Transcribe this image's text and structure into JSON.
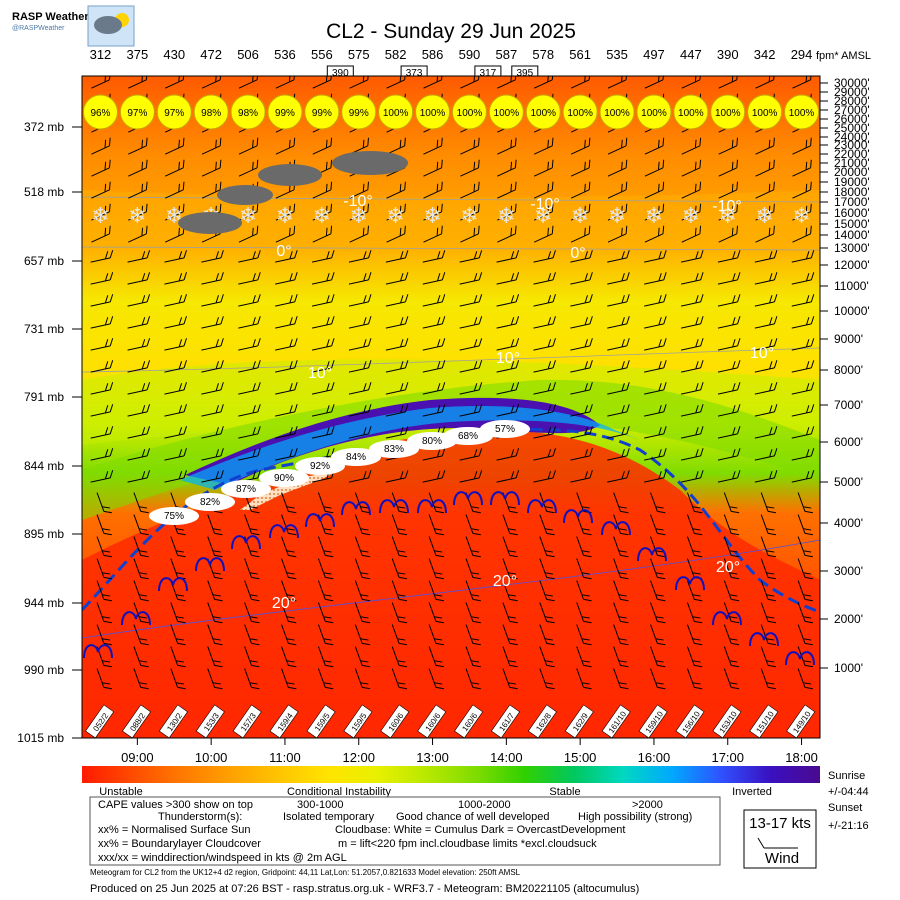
{
  "brand": {
    "name": "RASP Weather",
    "handle": "@RASPWeather"
  },
  "chart_data": {
    "type": "heatmap",
    "title": "CL2 - Sunday 29 Jun 2025",
    "top_values": [
      "312",
      "375",
      "430",
      "472",
      "506",
      "536",
      "556",
      "575",
      "582",
      "586",
      "590",
      "587",
      "578",
      "561",
      "535",
      "497",
      "447",
      "390",
      "342",
      "294"
    ],
    "top_unit": "fpm* AMSL",
    "top_boxes": [
      {
        "after": 6,
        "value": "390"
      },
      {
        "after": 8,
        "value": "373"
      },
      {
        "after": 10,
        "value": "317"
      },
      {
        "after": 11,
        "value": "395"
      }
    ],
    "pressure_labels": [
      "372 mb",
      "518 mb",
      "657 mb",
      "731 mb",
      "791 mb",
      "844 mb",
      "895 mb",
      "944 mb",
      "990 mb",
      "1015 mb"
    ],
    "altitude_labels": [
      "30000'",
      "29000'",
      "28000'",
      "27000'",
      "26000'",
      "25000'",
      "24000'",
      "23000'",
      "22000'",
      "21000'",
      "20000'",
      "19000'",
      "18000'",
      "17000'",
      "16000'",
      "15000'",
      "14000'",
      "13000'",
      "12000'",
      "11000'",
      "10000'",
      "9000'",
      "8000'",
      "7000'",
      "6000'",
      "5000'",
      "4000'",
      "3000'",
      "2000'",
      "1000'"
    ],
    "altitudes_ft": [
      30000,
      29000,
      28000,
      27000,
      26000,
      25000,
      24000,
      23000,
      22000,
      21000,
      20000,
      19000,
      18000,
      17000,
      16000,
      15000,
      14000,
      13000,
      12000,
      11000,
      10000,
      9000,
      8000,
      7000,
      6000,
      5000,
      4000,
      3000,
      2000,
      1000
    ],
    "time_labels": [
      "09:00",
      "10:00",
      "11:00",
      "12:00",
      "13:00",
      "14:00",
      "15:00",
      "16:00",
      "17:00",
      "18:00"
    ],
    "sun_values": [
      "96%",
      "97%",
      "97%",
      "98%",
      "98%",
      "99%",
      "99%",
      "99%",
      "100%",
      "100%",
      "100%",
      "100%",
      "100%",
      "100%",
      "100%",
      "100%",
      "100%",
      "100%",
      "100%",
      "100%"
    ],
    "blcloud_values": [
      "75%",
      "82%",
      "87%",
      "90%",
      "92%",
      "84%",
      "83%",
      "80%",
      "68%",
      "57%"
    ],
    "surface_wind": [
      "052/2",
      "088/2",
      "130/2",
      "153/3",
      "157/3",
      "159/4",
      "159/5",
      "159/5",
      "160/6",
      "160/6",
      "160/6",
      "161/7",
      "162/8",
      "162/9",
      "161/10",
      "159/10",
      "156/10",
      "153/10",
      "151/10",
      "149/10"
    ],
    "isotherm_labels": [
      "-10°",
      "-10°",
      "-10°",
      "0°",
      "0°",
      "10°",
      "10°",
      "10°",
      "20°",
      "20°",
      "20°"
    ],
    "colorbar_colors": [
      "#ff1a00",
      "#ff4a00",
      "#ff7800",
      "#ffa000",
      "#ffc400",
      "#ffe400",
      "#e8f000",
      "#b8e800",
      "#80dc00",
      "#30d000",
      "#00c860",
      "#00d8c0",
      "#00a8ff",
      "#3050ff",
      "#3a10c0",
      "#4a0a90"
    ],
    "colorbar_labels": [
      "Unstable",
      "Conditional Instability",
      "Stable",
      "Inverted"
    ],
    "sunrise": {
      "label": "Sunrise",
      "value": "+/-04:44"
    },
    "sunset": {
      "label": "Sunset",
      "value": "+/-21:16"
    },
    "legend_lines": {
      "cape": "CAPE values >300 show on top",
      "cape_1": "300-1000",
      "cape_2": "1000-2000",
      "cape_3": ">2000",
      "thunder": "Thunderstorm(s):",
      "thunder_1": "Isolated temporary",
      "thunder_2": "Good chance of well developed",
      "thunder_3": "High possibility (strong)",
      "sun": "xx% = Normalised Surface Sun",
      "cloudbase": "Cloudbase: White = Cumulus   Dark = OvercastDevelopment",
      "blcloud": "xx% = Boundarylayer Cloudcover",
      "lift": "m = lift<220 fpm incl.cloudbase limits *excl.cloudsuck",
      "wind": "xxx/xx = winddirection/windspeed in kts @ 2m AGL"
    },
    "wind_key": {
      "value": "13-17 kts",
      "label": "Wind"
    },
    "footnote": "Meteogram for CL2 from the UK12+4 d2 region, Gridpoint: 44,11 Lat,Lon: 51.2057,0.821633 Model elevation: 250ft AMSL",
    "produced": "Produced on 25 Jun 2025 at 07:26 BST - rasp.stratus.org.uk - WRF3.7 - Meteogram: BM20221105 (altocumulus)"
  }
}
